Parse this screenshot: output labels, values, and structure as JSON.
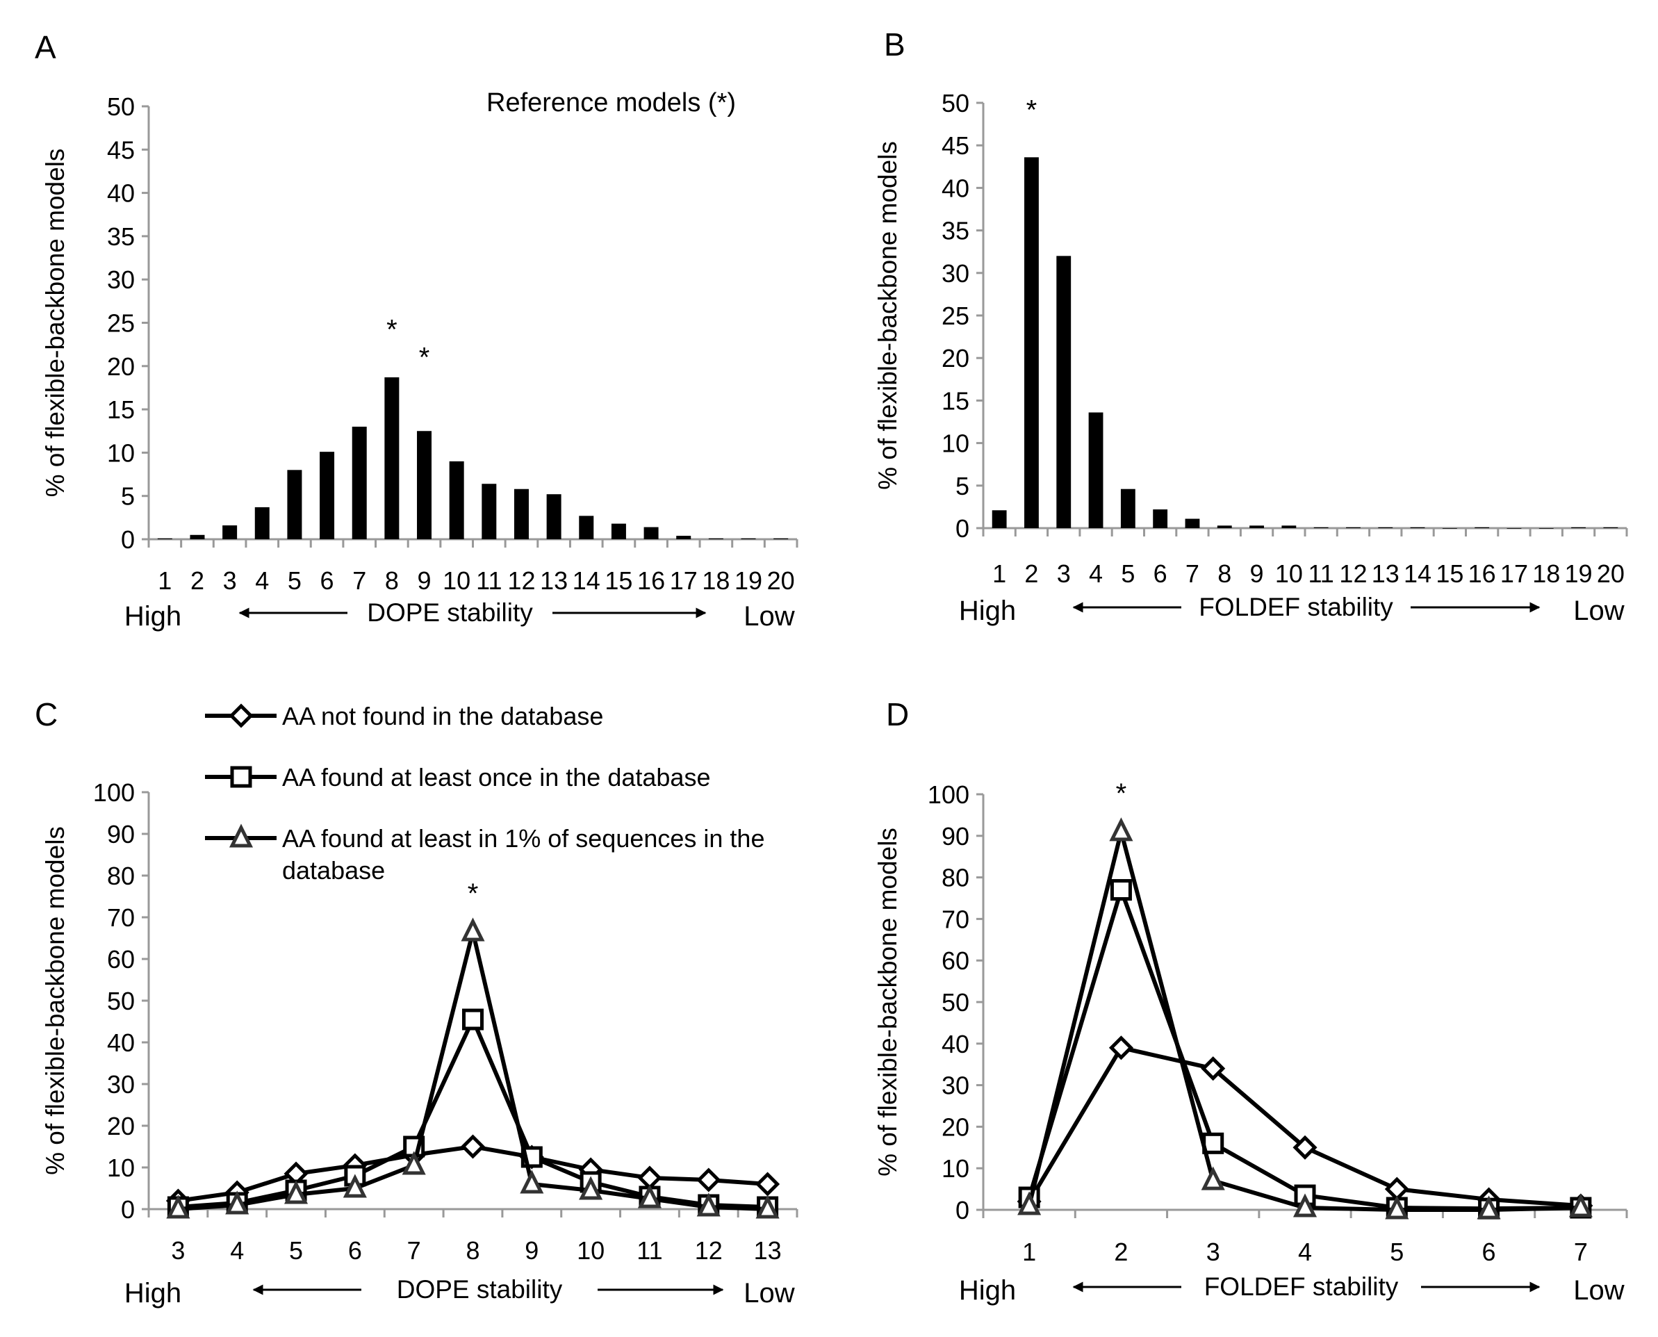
{
  "annotations": {
    "reference_note": "Reference models (*)",
    "star": "*"
  },
  "chart_data": [
    {
      "panel": "A",
      "type": "bar",
      "ylabel": "% of flexible-backbone models",
      "ylim": [
        0,
        50
      ],
      "yticks": [
        0,
        5,
        10,
        15,
        20,
        25,
        30,
        35,
        40,
        45,
        50
      ],
      "categories": [
        "1",
        "2",
        "3",
        "4",
        "5",
        "6",
        "7",
        "8",
        "9",
        "10",
        "11",
        "12",
        "13",
        "14",
        "15",
        "16",
        "17",
        "18",
        "19",
        "20"
      ],
      "values": [
        0.1,
        0.5,
        1.6,
        3.7,
        8.0,
        10.1,
        13.0,
        18.7,
        12.5,
        9.0,
        6.4,
        5.8,
        5.2,
        2.7,
        1.8,
        1.4,
        0.4,
        0.1,
        0.1,
        0.1
      ],
      "starred": [
        "8",
        "9"
      ],
      "xlabel": {
        "left": "High",
        "center": "DOPE stability",
        "right": "Low"
      },
      "grid": false
    },
    {
      "panel": "B",
      "type": "bar",
      "ylabel": "% of flexible-backbone models",
      "ylim": [
        0,
        50
      ],
      "yticks": [
        0,
        5,
        10,
        15,
        20,
        25,
        30,
        35,
        40,
        45,
        50
      ],
      "categories": [
        "1",
        "2",
        "3",
        "4",
        "5",
        "6",
        "7",
        "8",
        "9",
        "10",
        "11",
        "12",
        "13",
        "14",
        "15",
        "16",
        "17",
        "18",
        "19",
        "20"
      ],
      "values": [
        2.1,
        43.6,
        32.0,
        13.6,
        4.6,
        2.2,
        1.1,
        0.3,
        0.3,
        0.3,
        0.1,
        0.1,
        0.1,
        0.1,
        0,
        0.1,
        0,
        0,
        0.1,
        0.1
      ],
      "starred": [
        "2"
      ],
      "xlabel": {
        "left": "High",
        "center": "FOLDEF stability",
        "right": "Low"
      },
      "grid": false
    },
    {
      "panel": "C",
      "type": "line",
      "ylabel": "% of flexible-backbone models",
      "ylim": [
        0,
        100
      ],
      "yticks": [
        0,
        10,
        20,
        30,
        40,
        50,
        60,
        70,
        80,
        90,
        100
      ],
      "categories": [
        "3",
        "4",
        "5",
        "6",
        "7",
        "8",
        "9",
        "10",
        "11",
        "12",
        "13"
      ],
      "series": [
        {
          "name": "AA not found in the database",
          "marker": "diamond",
          "values": [
            2,
            4,
            8.5,
            10.5,
            13,
            15,
            12.5,
            9.5,
            7.5,
            7,
            6
          ]
        },
        {
          "name": "AA found at least once in the database",
          "marker": "square",
          "values": [
            0.5,
            1.5,
            4.5,
            8,
            15,
            45.5,
            12.5,
            6.5,
            3,
            1,
            0.5
          ]
        },
        {
          "name": "AA found at least in 1% of sequences  in the database",
          "name_line1": "AA found at least in 1% of sequences  in the",
          "name_line2": "database",
          "marker": "triangle",
          "values": [
            0,
            1,
            3.5,
            5,
            10.5,
            66.5,
            6,
            4.5,
            2.5,
            0.5,
            0
          ]
        }
      ],
      "starred": [
        "8"
      ],
      "legend": "top-left",
      "xlabel": {
        "left": "High",
        "center": "DOPE stability",
        "right": "Low"
      },
      "grid": false
    },
    {
      "panel": "D",
      "type": "line",
      "ylabel": "% of flexible-backbone models",
      "ylim": [
        0,
        100
      ],
      "yticks": [
        0,
        10,
        20,
        30,
        40,
        50,
        60,
        70,
        80,
        90,
        100
      ],
      "categories": [
        "1",
        "2",
        "3",
        "4",
        "5",
        "6",
        "7"
      ],
      "series": [
        {
          "name": "AA not found in the database",
          "marker": "diamond",
          "values": [
            2,
            39,
            34,
            15,
            5,
            2.5,
            1
          ]
        },
        {
          "name": "AA found at least once in the database",
          "marker": "square",
          "values": [
            3,
            77,
            16,
            3.5,
            0.5,
            0.3,
            0.5
          ]
        },
        {
          "name": "AA found at least in 1% of sequences  in the database",
          "marker": "triangle",
          "values": [
            1,
            91,
            7,
            0.5,
            0,
            0,
            0.5
          ]
        }
      ],
      "starred": [
        "2"
      ],
      "xlabel": {
        "left": "High",
        "center": "FOLDEF stability",
        "right": "Low"
      },
      "grid": false
    }
  ]
}
